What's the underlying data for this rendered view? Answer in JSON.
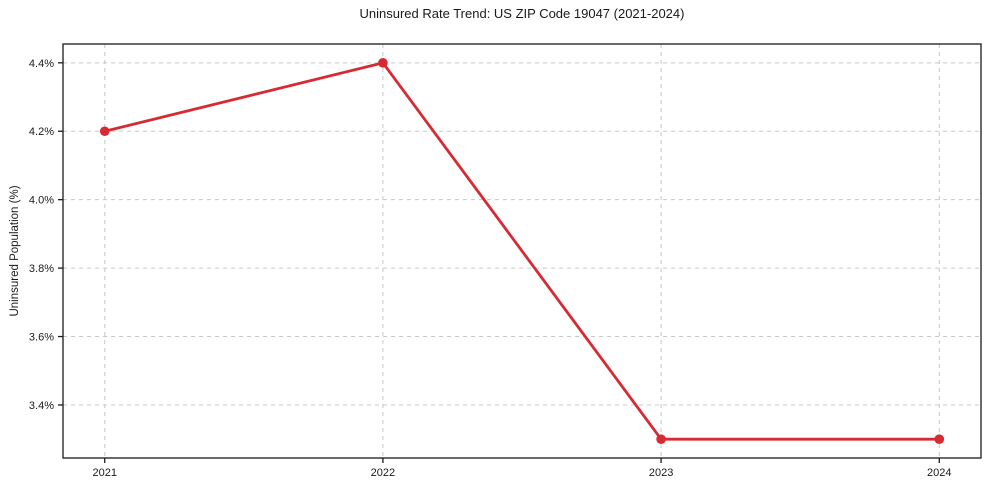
{
  "chart_data": {
    "type": "line",
    "title": "Uninsured Rate Trend: US ZIP Code 19047 (2021-2024)",
    "xlabel": "",
    "ylabel": "Uninsured Population (%)",
    "x": [
      2021,
      2022,
      2023,
      2024
    ],
    "values": [
      4.2,
      4.4,
      3.3,
      3.3
    ],
    "xticks": [
      2021,
      2022,
      2023,
      2024
    ],
    "xtick_labels": [
      "2021",
      "2022",
      "2023",
      "2024"
    ],
    "yticks": [
      3.4,
      3.6,
      3.8,
      4.0,
      4.2,
      4.4
    ],
    "ytick_labels": [
      "3.4%",
      "3.6%",
      "3.8%",
      "4.0%",
      "4.2%",
      "4.4%"
    ],
    "xlim": [
      2020.85,
      2024.15
    ],
    "ylim": [
      3.245,
      4.455
    ],
    "grid": true,
    "grid_style": "dashed",
    "legend": false,
    "marker": "o",
    "colors": {
      "line": "#d62b32",
      "marker": "#d62b32",
      "grid": "#c8c8c8",
      "spine": "#1a1a1a",
      "text": "#1a1a1a",
      "background": "#ffffff"
    }
  }
}
